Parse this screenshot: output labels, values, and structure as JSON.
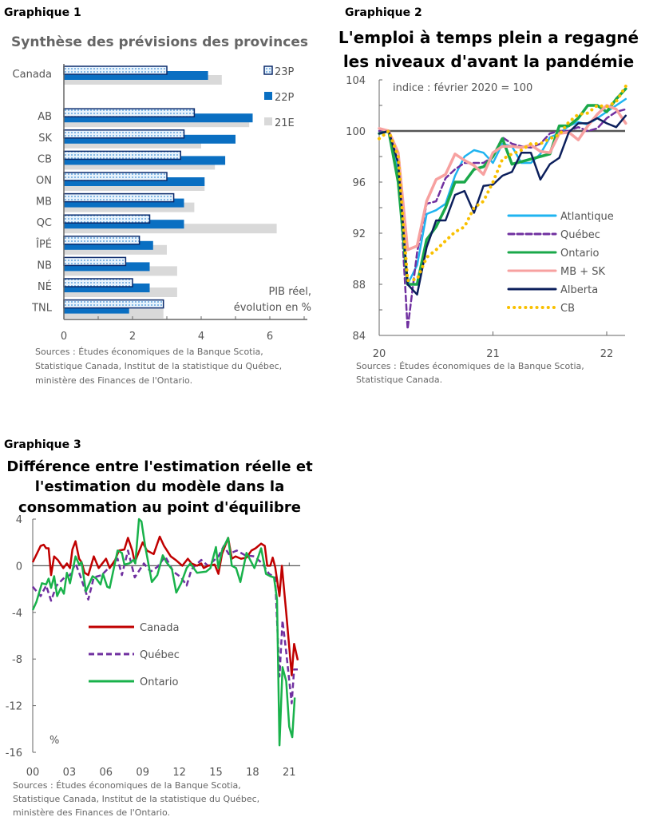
{
  "chart_data": [
    {
      "id": "g1",
      "label": "Graphique 1",
      "type": "bar",
      "orientation": "horizontal",
      "title": "Synthèse des prévisions des provinces",
      "categories": [
        "Canada",
        "",
        "AB",
        "SK",
        "CB",
        "ON",
        "MB",
        "QC",
        "ÎPÉ",
        "NB",
        "NÉ",
        "TNL"
      ],
      "series": [
        {
          "name": "23P",
          "color": "#0b2a6b",
          "values": [
            3.0,
            null,
            3.8,
            3.5,
            3.4,
            3.0,
            3.2,
            2.5,
            2.2,
            1.8,
            2.0,
            2.9
          ]
        },
        {
          "name": "22P",
          "color": "#0a6fc2",
          "values": [
            4.2,
            null,
            5.5,
            5.0,
            4.7,
            4.1,
            3.5,
            3.5,
            2.6,
            2.5,
            2.5,
            1.9
          ]
        },
        {
          "name": "21E",
          "color": "#d9d9d9",
          "values": [
            4.6,
            null,
            5.4,
            4.0,
            4.4,
            4.1,
            3.8,
            6.2,
            3.0,
            3.3,
            3.3,
            2.9
          ]
        }
      ],
      "xlim": [
        0,
        7
      ],
      "xticks": [
        "0",
        "2",
        "4",
        "6"
      ],
      "unit_note": [
        "PIB réel,",
        "évolution en %"
      ],
      "legend": "top-right",
      "sources": [
        "Sources : Études économiques de la Banque Scotia,",
        "Statistique Canada, Institut de la statistique du Québec,",
        "ministère des Finances de l'Ontario."
      ]
    },
    {
      "id": "g2",
      "label": "Graphique 2",
      "type": "line",
      "title": [
        "L'emploi à temps plein a regagné",
        "les niveaux d'avant la pandémie"
      ],
      "note": "indice : février 2020 = 100",
      "x_start": "2020-01",
      "frequency": "monthly",
      "xticks": [
        "20",
        "21",
        "22"
      ],
      "ylim": [
        84,
        104
      ],
      "yticks": [
        "104",
        "100",
        "96",
        "92",
        "88",
        "84"
      ],
      "reference_line": 100,
      "series": [
        {
          "name": "Atlantique",
          "color": "#1fb4f0",
          "style": "solid",
          "values": [
            100,
            100,
            97,
            88,
            89.5,
            93.5,
            93.8,
            94.3,
            96.5,
            98,
            98.5,
            98.3,
            97.5,
            99,
            98.8,
            97.5,
            97.5,
            98.2,
            99.5,
            99.8,
            100.4,
            100.7,
            100.5,
            101,
            101.5,
            102,
            102.5
          ]
        },
        {
          "name": "Québec",
          "color": "#7030a0",
          "style": "dashed",
          "values": [
            100,
            100,
            97.5,
            84.5,
            90.5,
            94.3,
            94.5,
            96.3,
            97,
            97.5,
            97.5,
            97.5,
            98,
            99.5,
            99,
            98.8,
            98.7,
            99,
            99.8,
            100,
            100,
            100.3,
            100,
            100.2,
            101,
            101.5,
            101.7
          ]
        },
        {
          "name": "Ontario",
          "color": "#1aa84a",
          "style": "solid",
          "values": [
            99.8,
            100,
            96,
            88,
            88,
            91.5,
            92.5,
            94,
            96,
            96,
            97,
            97.2,
            98,
            99.4,
            97.4,
            97.6,
            97.8,
            98,
            98.2,
            100.4,
            100.4,
            101,
            102,
            102,
            101.5,
            102.5,
            103.3
          ]
        },
        {
          "name": "MB + SK",
          "color": "#f7a1a0",
          "style": "solid",
          "values": [
            100.2,
            100,
            98.3,
            90.7,
            91,
            94.5,
            96.2,
            96.6,
            98.2,
            97.7,
            97.3,
            96.6,
            98.3,
            98.8,
            98.8,
            98.7,
            98.9,
            98.4,
            98.3,
            99.8,
            99.9,
            99.3,
            100.4,
            101.3,
            102,
            101.7,
            100.6
          ]
        },
        {
          "name": "Alberta",
          "color": "#0c1f5c",
          "style": "solid",
          "values": [
            99.8,
            100,
            97.5,
            88,
            87.2,
            90.9,
            93,
            93,
            95,
            95.3,
            93.6,
            95.7,
            95.8,
            96.5,
            96.8,
            98.3,
            98.3,
            96.2,
            97.4,
            97.9,
            99.9,
            100.6,
            100.6,
            101,
            100.6,
            100.3,
            101.2
          ]
        },
        {
          "name": "CB",
          "color": "#f9c000",
          "style": "dotted",
          "values": [
            99.4,
            100,
            98,
            88.3,
            88.4,
            90.1,
            90.7,
            91.4,
            92.1,
            92.5,
            94,
            94.5,
            96,
            97.8,
            98.2,
            98.5,
            99,
            99,
            99.4,
            99.7,
            100.7,
            101.3,
            101.4,
            102,
            101.9,
            102.3,
            103.5
          ]
        }
      ],
      "legend": "right",
      "sources": [
        "Sources : Études économiques de la Banque Scotia,",
        "Statistique Canada."
      ]
    },
    {
      "id": "g3",
      "label": "Graphique 3",
      "type": "line",
      "title": [
        "Différence entre l'estimation réelle et",
        "l'estimation du modèle dans la",
        "consommation au point d'équilibre"
      ],
      "ylabel": "%",
      "ylim": [
        -16,
        4
      ],
      "yticks": [
        "4",
        "0",
        "-4",
        "-8",
        "-12",
        "-16"
      ],
      "xlim": [
        2000,
        2021.9
      ],
      "xticks": [
        "00",
        "03",
        "06",
        "09",
        "12",
        "15",
        "18",
        "21"
      ],
      "series": [
        {
          "name": "Canada",
          "color": "#c00000",
          "style": "solid",
          "points": [
            [
              2000,
              0.3
            ],
            [
              2000.65,
              1.7
            ],
            [
              2000.9,
              1.8
            ],
            [
              2001.1,
              1.5
            ],
            [
              2001.3,
              1.5
            ],
            [
              2001.5,
              -0.8
            ],
            [
              2001.75,
              0.8
            ],
            [
              2002.05,
              0.5
            ],
            [
              2002.5,
              -0.2
            ],
            [
              2002.8,
              0.2
            ],
            [
              2003.05,
              -0.2
            ],
            [
              2003.25,
              1.4
            ],
            [
              2003.5,
              2.1
            ],
            [
              2003.8,
              0.6
            ],
            [
              2004,
              0.3
            ],
            [
              2004.25,
              -0.6
            ],
            [
              2004.55,
              -0.8
            ],
            [
              2005,
              0.8
            ],
            [
              2005.4,
              -0.2
            ],
            [
              2006,
              0.6
            ],
            [
              2006.3,
              -0.2
            ],
            [
              2006.75,
              0.5
            ],
            [
              2007.05,
              1.3
            ],
            [
              2007.5,
              1.4
            ],
            [
              2007.8,
              2.4
            ],
            [
              2008.15,
              1.3
            ],
            [
              2008.35,
              0.3
            ],
            [
              2009,
              2.0
            ],
            [
              2009.35,
              1.3
            ],
            [
              2009.9,
              1.0
            ],
            [
              2010.4,
              2.5
            ],
            [
              2010.75,
              1.7
            ],
            [
              2011.3,
              0.8
            ],
            [
              2011.7,
              0.5
            ],
            [
              2012.25,
              0
            ],
            [
              2012.7,
              0.6
            ],
            [
              2013,
              0.2
            ],
            [
              2013.45,
              0
            ],
            [
              2013.8,
              0.2
            ],
            [
              2014,
              -0.2
            ],
            [
              2014.35,
              0
            ],
            [
              2014.9,
              0.1
            ],
            [
              2015.2,
              -0.7
            ],
            [
              2015.5,
              1.0
            ],
            [
              2016,
              2.4
            ],
            [
              2016.3,
              0.6
            ],
            [
              2016.6,
              0.8
            ],
            [
              2017.05,
              0.6
            ],
            [
              2017.5,
              0.7
            ],
            [
              2017.9,
              1.3
            ],
            [
              2018.25,
              1.5
            ],
            [
              2018.7,
              1.9
            ],
            [
              2019,
              1.7
            ],
            [
              2019.2,
              0
            ],
            [
              2019.45,
              0
            ],
            [
              2019.65,
              0.7
            ],
            [
              2019.85,
              -0.1
            ],
            [
              2020.2,
              -2.6
            ],
            [
              2020.4,
              0
            ],
            [
              2020.75,
              -4.0
            ],
            [
              2021.2,
              -9.4
            ],
            [
              2021.4,
              -6.7
            ],
            [
              2021.7,
              -8.1
            ]
          ]
        },
        {
          "name": "Québec",
          "color": "#7030a0",
          "style": "dashed",
          "points": [
            [
              2000,
              -1.8
            ],
            [
              2000.65,
              -2.6
            ],
            [
              2001.1,
              -1.7
            ],
            [
              2001.5,
              -3.0
            ],
            [
              2001.95,
              -1.7
            ],
            [
              2002.6,
              -1.0
            ],
            [
              2003.05,
              -0.8
            ],
            [
              2003.5,
              0.2
            ],
            [
              2003.9,
              -0.9
            ],
            [
              2004.55,
              -2.9
            ],
            [
              2005,
              -1.0
            ],
            [
              2005.65,
              -0.8
            ],
            [
              2006.3,
              -0.1
            ],
            [
              2006.95,
              0.6
            ],
            [
              2007.3,
              -0.8
            ],
            [
              2007.8,
              1.3
            ],
            [
              2008.35,
              -1.0
            ],
            [
              2009.1,
              0.2
            ],
            [
              2009.65,
              -0.5
            ],
            [
              2010.2,
              -0.1
            ],
            [
              2010.85,
              0.8
            ],
            [
              2011.5,
              -0.5
            ],
            [
              2012.15,
              -1.0
            ],
            [
              2012.6,
              -1.7
            ],
            [
              2013,
              -0.3
            ],
            [
              2013.8,
              0.5
            ],
            [
              2014.35,
              0
            ],
            [
              2015.2,
              0.8
            ],
            [
              2015.65,
              1.7
            ],
            [
              2016.05,
              1.0
            ],
            [
              2016.7,
              1.3
            ],
            [
              2017.4,
              0.9
            ],
            [
              2018.15,
              0.8
            ],
            [
              2018.8,
              0.2
            ],
            [
              2019.35,
              -0.7
            ],
            [
              2019.85,
              -1.0
            ],
            [
              2020.2,
              -9.5
            ],
            [
              2020.45,
              -4.7
            ],
            [
              2020.75,
              -7.4
            ],
            [
              2021.2,
              -11.8
            ],
            [
              2021.4,
              -8.9
            ],
            [
              2021.7,
              -8.9
            ]
          ]
        },
        {
          "name": "Ontario",
          "color": "#19b24b",
          "style": "solid",
          "points": [
            [
              2000,
              -3.8
            ],
            [
              2000.3,
              -3.1
            ],
            [
              2000.75,
              -1.5
            ],
            [
              2001.1,
              -1.6
            ],
            [
              2001.3,
              -1.1
            ],
            [
              2001.5,
              -1.9
            ],
            [
              2001.75,
              -0.9
            ],
            [
              2002,
              -2.6
            ],
            [
              2002.3,
              -1.9
            ],
            [
              2002.55,
              -2.4
            ],
            [
              2002.8,
              -0.6
            ],
            [
              2003.05,
              -1.5
            ],
            [
              2003.5,
              0.8
            ],
            [
              2003.8,
              0.1
            ],
            [
              2004,
              0.3
            ],
            [
              2004.35,
              -2.2
            ],
            [
              2004.9,
              -0.9
            ],
            [
              2005.2,
              -1.1
            ],
            [
              2005.55,
              -1.6
            ],
            [
              2005.75,
              -0.7
            ],
            [
              2006.1,
              -1.8
            ],
            [
              2006.3,
              -1.9
            ],
            [
              2006.95,
              1.3
            ],
            [
              2007.3,
              1.1
            ],
            [
              2007.5,
              0.1
            ],
            [
              2007.9,
              0.2
            ],
            [
              2008.25,
              0.5
            ],
            [
              2008.4,
              0.2
            ],
            [
              2008.7,
              4.0
            ],
            [
              2008.9,
              3.8
            ],
            [
              2009.2,
              1.7
            ],
            [
              2009.75,
              -1.4
            ],
            [
              2010.2,
              -0.8
            ],
            [
              2010.65,
              0.9
            ],
            [
              2010.95,
              0.3
            ],
            [
              2011.4,
              -0.3
            ],
            [
              2011.75,
              -2.3
            ],
            [
              2012.15,
              -1.5
            ],
            [
              2012.6,
              -0.2
            ],
            [
              2012.9,
              0.2
            ],
            [
              2013.45,
              -0.6
            ],
            [
              2014.2,
              -0.5
            ],
            [
              2014.55,
              -0.2
            ],
            [
              2015,
              1.6
            ],
            [
              2015.2,
              -0.2
            ],
            [
              2015.5,
              1.3
            ],
            [
              2016,
              2.4
            ],
            [
              2016.3,
              0
            ],
            [
              2016.65,
              -0.2
            ],
            [
              2017,
              -1.4
            ],
            [
              2017.5,
              1.1
            ],
            [
              2018.15,
              -0.2
            ],
            [
              2018.7,
              1.5
            ],
            [
              2019.1,
              -0.7
            ],
            [
              2019.45,
              -0.9
            ],
            [
              2019.75,
              -1.0
            ],
            [
              2020,
              -2.9
            ],
            [
              2020.2,
              -15.4
            ],
            [
              2020.45,
              -8.7
            ],
            [
              2020.75,
              -9.9
            ],
            [
              2021,
              -13.8
            ],
            [
              2021.25,
              -14.7
            ],
            [
              2021.45,
              -11.3
            ]
          ]
        }
      ],
      "legend": "center-left",
      "sources": [
        "Sources : Études économiques de la Banque Scotia,",
        "Statistique Canada, Institut de la statistique du Québec,",
        "ministère des Finances de l'Ontario."
      ]
    }
  ]
}
